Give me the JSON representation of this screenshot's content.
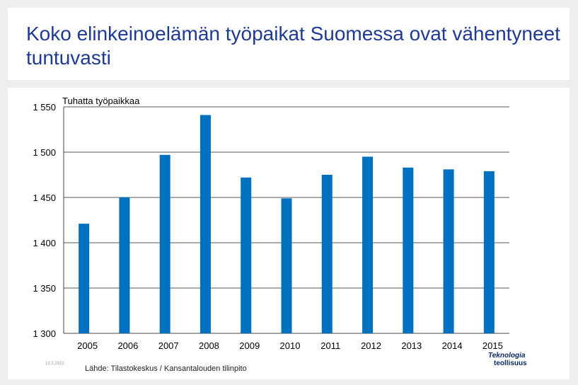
{
  "slide": {
    "title": "Koko elinkeinoelämän työpaikat Suomessa ovat vähentyneet tuntuvasti",
    "date": "12.2.2022",
    "source": "Lähde: Tilastokeskus / Kansantalouden tilinpito",
    "logo": {
      "line1": "Teknologia",
      "line2": "teollisuus"
    }
  },
  "colors": {
    "bar": "#0070c0",
    "title": "#1f3a93",
    "grid": "#555555"
  },
  "chart_data": {
    "type": "bar",
    "ylabel": "Tuhatta työpaikkaa",
    "categories": [
      "2005",
      "2006",
      "2007",
      "2008",
      "2009",
      "2010",
      "2011",
      "2012",
      "2013",
      "2014",
      "2015"
    ],
    "values": [
      1421,
      1450,
      1497,
      1541,
      1472,
      1449,
      1475,
      1495,
      1483,
      1481,
      1479
    ],
    "ylim": [
      1300,
      1550
    ],
    "yticks": [
      1300,
      1350,
      1400,
      1450,
      1500,
      1550
    ],
    "ytick_labels": [
      "1 300",
      "1 350",
      "1 400",
      "1 450",
      "1 500",
      "1 550"
    ],
    "grid": true
  }
}
